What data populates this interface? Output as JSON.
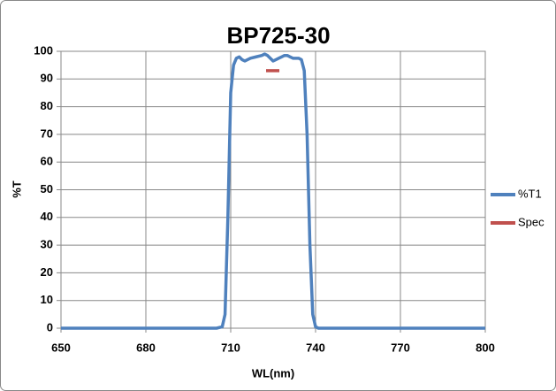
{
  "chart_data": {
    "type": "line",
    "title": "BP725-30",
    "x_label": "WL(nm)",
    "y_label": "%T",
    "xlim": [
      650,
      800
    ],
    "xticks": [
      650,
      680,
      710,
      740,
      770,
      800
    ],
    "ylim": [
      0,
      100
    ],
    "yticks": [
      0,
      10,
      20,
      30,
      40,
      50,
      60,
      70,
      80,
      90,
      100
    ],
    "grid": true,
    "legend": "right",
    "series": [
      {
        "name": "%T1",
        "color": "#4f81bd",
        "x": [
          650,
          705,
          707,
          708,
          709,
          710,
          711,
          712,
          713,
          714,
          715,
          717,
          719,
          721,
          722,
          723,
          724,
          725,
          726,
          727,
          728,
          729,
          730,
          731,
          732,
          734,
          735,
          736,
          737,
          738,
          739,
          740,
          741,
          800
        ],
        "values": [
          0,
          0,
          0.5,
          5,
          40,
          85,
          95,
          97.5,
          98,
          97,
          96.5,
          97.5,
          98,
          98.5,
          99,
          98.5,
          97.5,
          96.5,
          97,
          97.5,
          98,
          98.5,
          98.5,
          98,
          97.5,
          97.5,
          97,
          93,
          70,
          30,
          5,
          0.5,
          0,
          0
        ]
      },
      {
        "name": "Spec",
        "color": "#c0504d",
        "x": [
          722.5,
          727.2
        ],
        "values": [
          93,
          93
        ]
      }
    ]
  }
}
